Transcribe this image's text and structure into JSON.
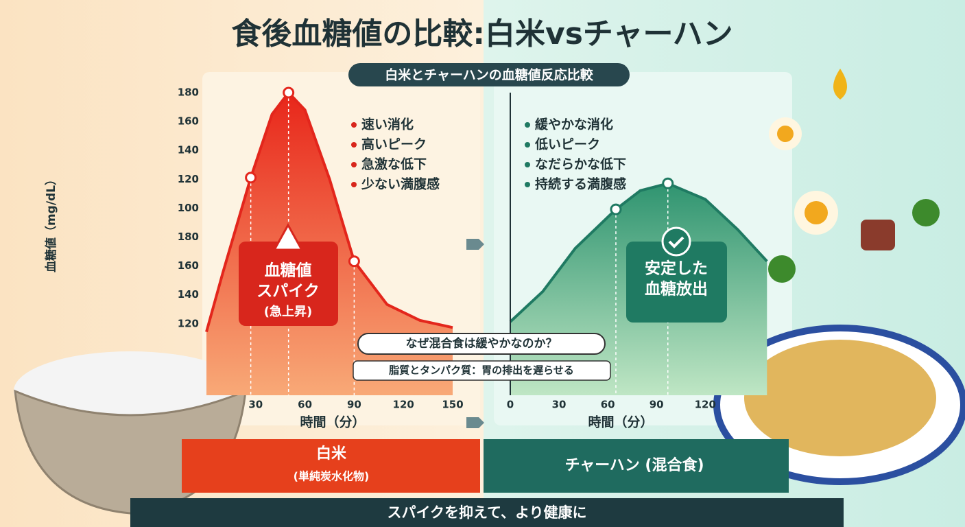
{
  "title": "食後血糖値の比較:白米vsチャーハン",
  "subtitle": "白米とチャーハンの血糖値反応比較",
  "chart_data": [
    {
      "type": "line",
      "y_axis_label": "血糖値（mg/dL）",
      "x_axis_label": "時間（分）",
      "y_axis_labels": [
        "180",
        "160",
        "140",
        "120",
        "100",
        "180",
        "160",
        "140",
        "120"
      ],
      "xlim": [
        0,
        150
      ],
      "xticks": [
        30,
        60,
        90,
        120,
        150
      ],
      "ylim": [
        -30,
        190
      ],
      "x": [
        0,
        10,
        27,
        40,
        50,
        60,
        75,
        90,
        110,
        130,
        150
      ],
      "values": [
        14,
        55,
        121,
        165,
        180,
        168,
        120,
        63,
        33,
        22,
        17
      ],
      "points_x": [
        27,
        50,
        90
      ],
      "points_values": [
        121,
        180,
        63
      ],
      "color": "#e3261c",
      "bullets": [
        "速い消化",
        "高いピーク",
        "急激な低下",
        "少ない満腹感"
      ],
      "badge": [
        "血糖値",
        "スパイク",
        "(急上昇)"
      ],
      "panel_label": "白米",
      "panel_sublabel": "(単純炭水化物)"
    },
    {
      "type": "line",
      "x_axis_label": "時間（分）",
      "xlim": [
        0,
        160
      ],
      "xticks": [
        0,
        30,
        60,
        90,
        120
      ],
      "ylim": [
        -30,
        190
      ],
      "x": [
        0,
        20,
        40,
        65,
        80,
        97,
        120,
        140,
        158
      ],
      "values": [
        21,
        42,
        72,
        99,
        112,
        117,
        106,
        85,
        63
      ],
      "points_x": [
        65,
        97
      ],
      "points_values": [
        99,
        117
      ],
      "color": "#1f7a62",
      "bullets": [
        "緩やかな消化",
        "低いピーク",
        "なだらかな低下",
        "持続する満腹感"
      ],
      "badge": [
        "安定した",
        "血糖放出"
      ],
      "panel_label": "チャーハン (混合食)"
    }
  ],
  "note": {
    "question": "なぜ混合食は緩やかなのか？",
    "answer": "脂質とタンパク質：胃の排出を遅らせる"
  },
  "footer": "スパイクを抑えて、より健康に"
}
